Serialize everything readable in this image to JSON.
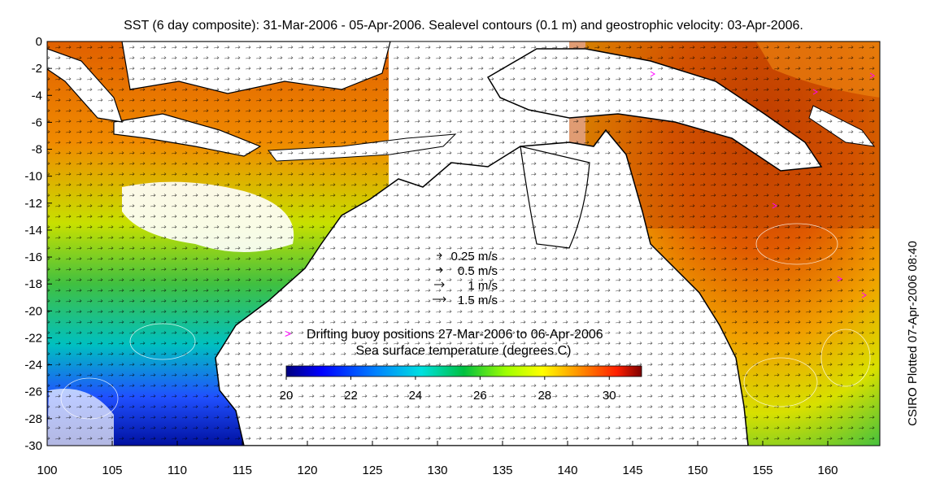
{
  "title": "SST (6 day composite): 31-Mar-2006 - 05-Apr-2006. Sealevel contours (0.1 m) and geostrophic velocity: 03-Apr-2006.",
  "side_credit": "CSIRO Plotted 07-Apr-2006 08:40",
  "axes": {
    "x_ticks": [
      "100",
      "105",
      "110",
      "115",
      "120",
      "125",
      "130",
      "135",
      "140",
      "145",
      "150",
      "155",
      "160"
    ],
    "y_ticks": [
      "0",
      "-2",
      "-4",
      "-6",
      "-8",
      "-10",
      "-12",
      "-14",
      "-16",
      "-18",
      "-20",
      "-22",
      "-24",
      "-26",
      "-28",
      "-30"
    ],
    "lon_range": [
      100,
      164
    ],
    "lat_range": [
      -30,
      0
    ]
  },
  "velocity_key": {
    "items": [
      {
        "label": "0.25 m/s",
        "speed": 0.25
      },
      {
        "label": "0.5 m/s",
        "speed": 0.5
      },
      {
        "label": "1 m/s",
        "speed": 1
      },
      {
        "label": "1.5 m/s",
        "speed": 1.5
      }
    ]
  },
  "legend": {
    "buoy_marker": ">",
    "buoy_label": "Drifting buoy positions 27-Mar-2006 to 06-Apr-2006",
    "colorbar_title": "Sea surface temperature (degrees C)",
    "colorbar_ticks": [
      "20",
      "22",
      "24",
      "26",
      "28",
      "30"
    ],
    "colorbar_range": [
      20,
      31
    ]
  },
  "colors": {
    "land": "#ffffff",
    "coast": "#000000",
    "buoy": "#ff00ff",
    "sst_cold": "#00007f",
    "sst_hot": "#7f0000"
  }
}
